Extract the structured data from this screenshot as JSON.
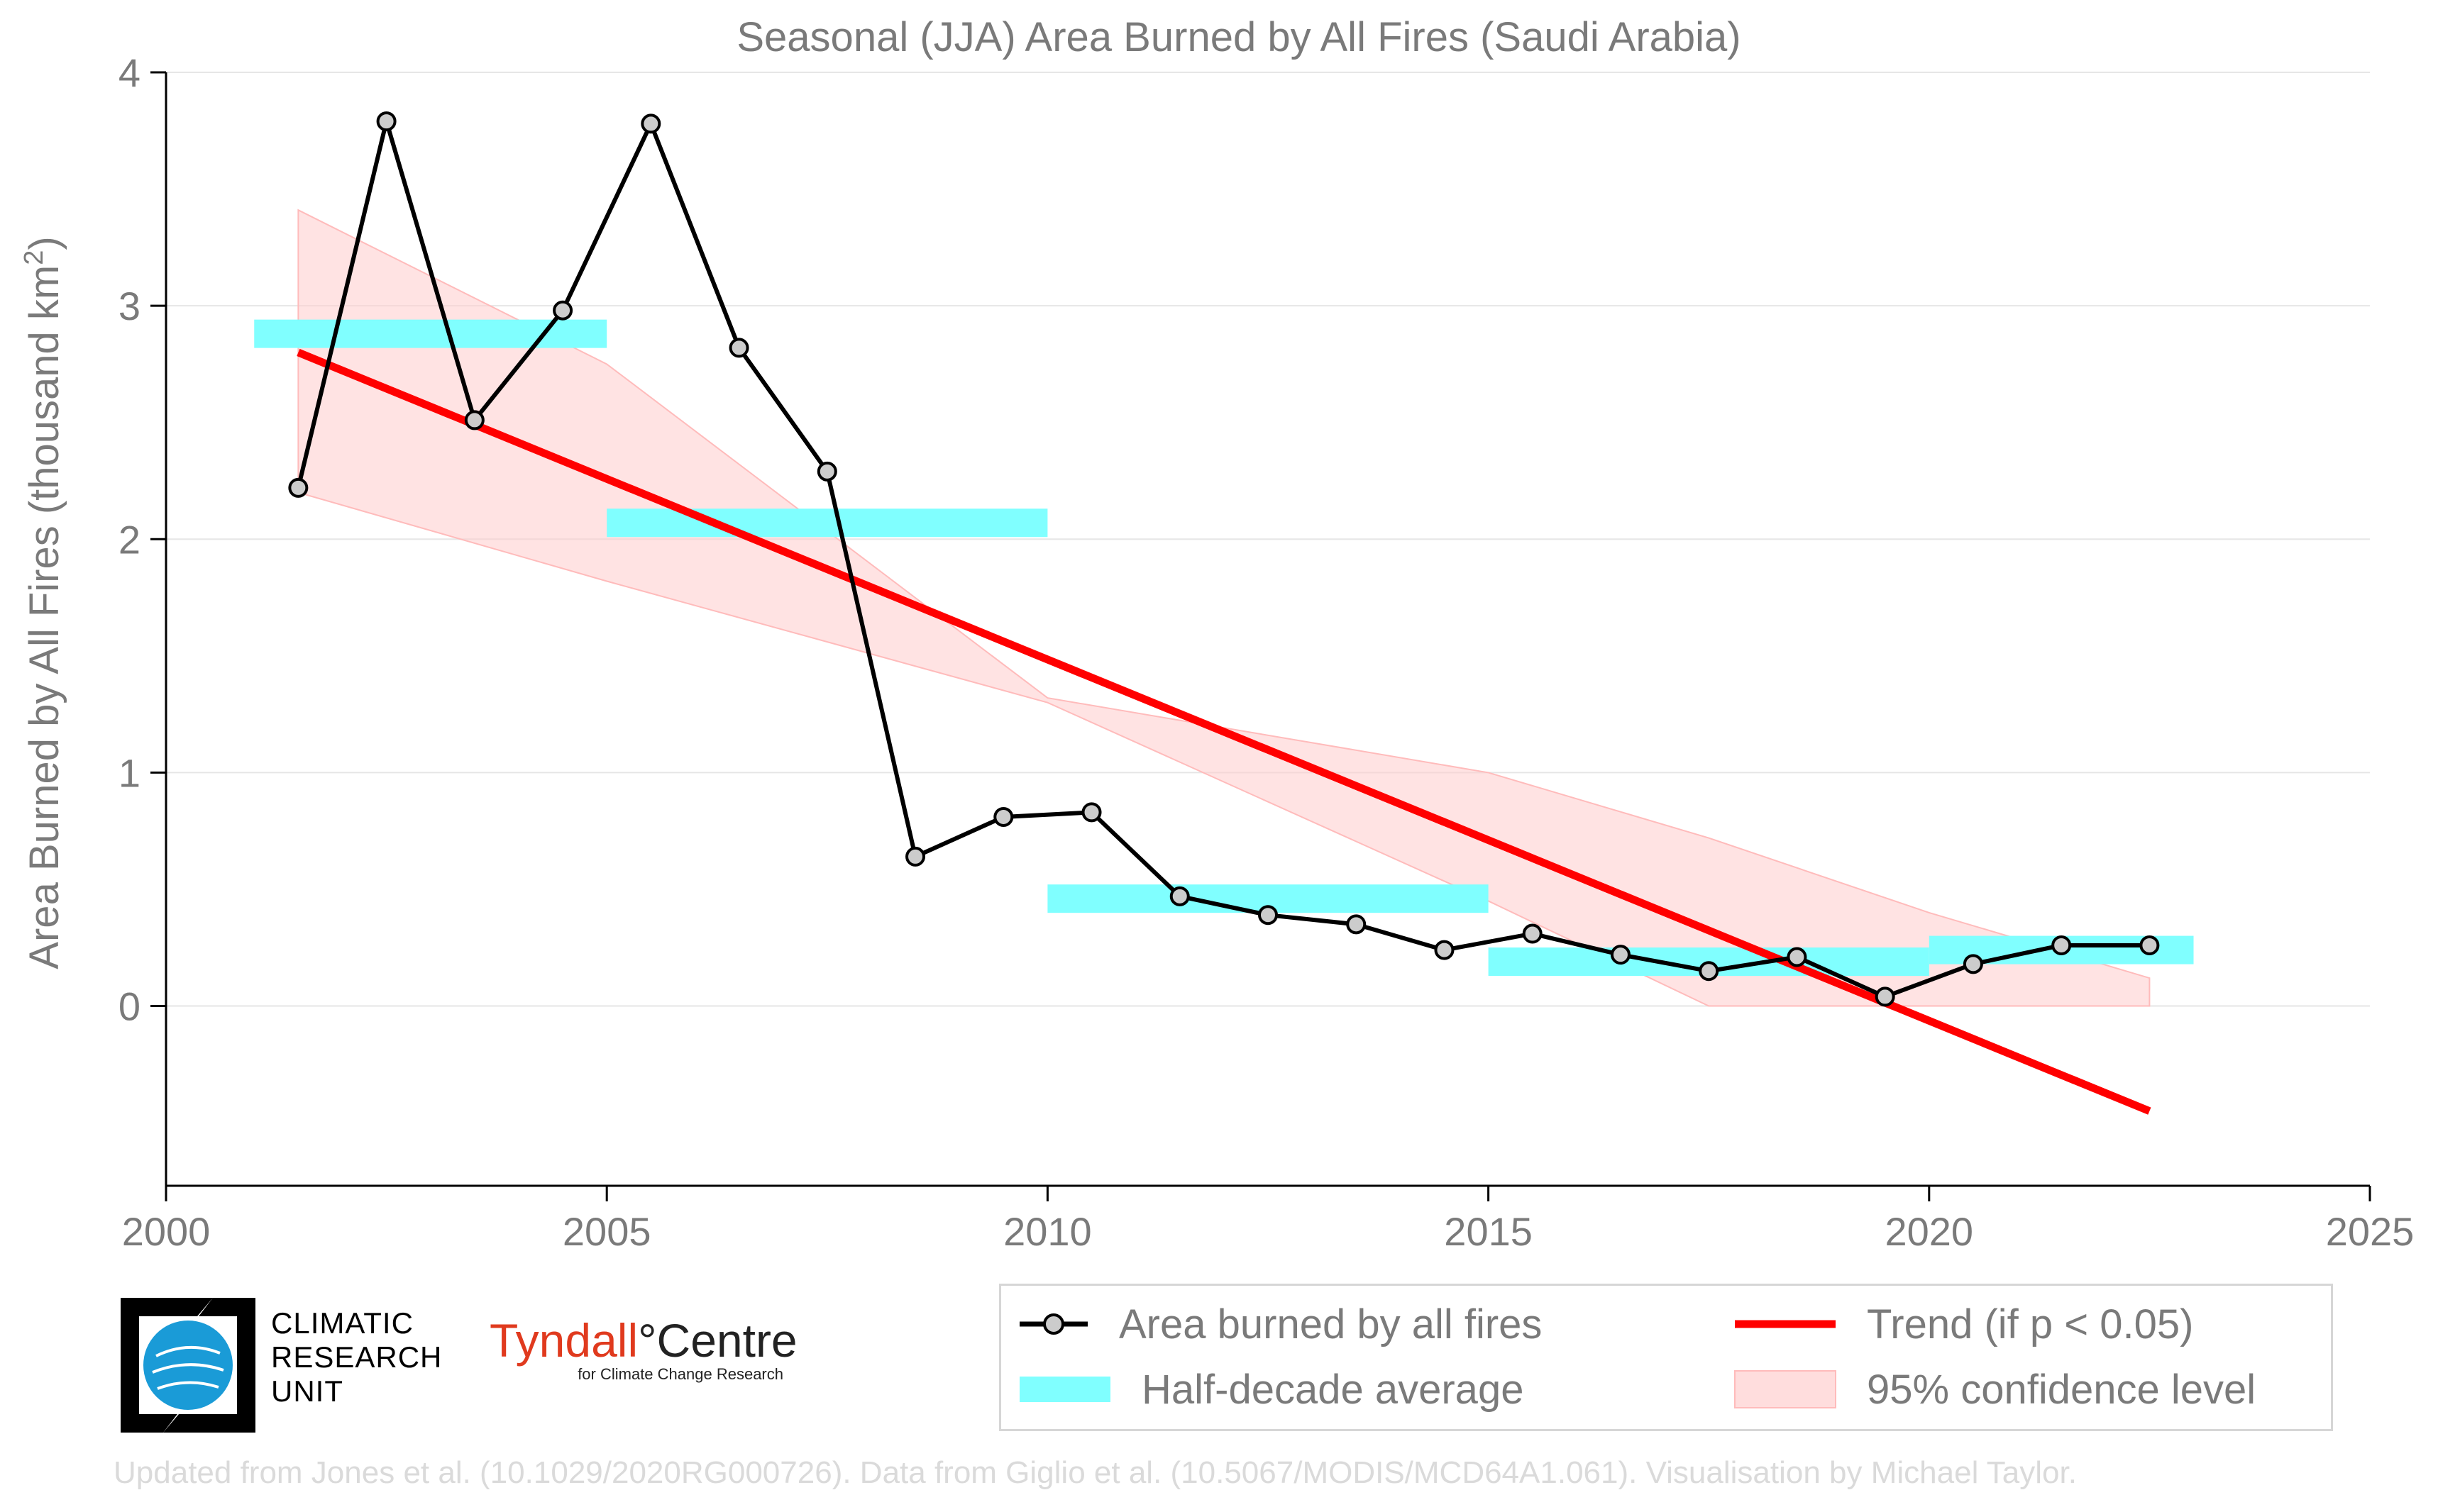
{
  "chart_data": {
    "type": "line",
    "title": "Seasonal (JJA) Area Burned by All Fires (Saudi Arabia)",
    "xlabel": "",
    "ylabel": "Area Burned by All Fires (thousand km",
    "ylabel_sup": "2",
    "ylabel_tail": ")",
    "xlim": [
      2000,
      2025
    ],
    "ylim": [
      -0.77,
      4
    ],
    "x_ticks": [
      2000,
      2005,
      2010,
      2015,
      2020,
      2025
    ],
    "x_tick_labels": [
      "2000",
      "2005",
      "2010",
      "2015",
      "2020",
      "2025"
    ],
    "y_ticks": [
      0,
      1,
      2,
      3,
      4
    ],
    "y_tick_labels": [
      "0",
      "1",
      "2",
      "3",
      "4"
    ],
    "grid": "horizontal",
    "legend_position": "bottom-right, below plot",
    "series": [
      {
        "name": "Area burned by all fires",
        "color": "#000000",
        "marker_fill": "#cccccc",
        "x": [
          2001.5,
          2002.5,
          2003.5,
          2004.5,
          2005.5,
          2006.5,
          2007.5,
          2008.5,
          2009.5,
          2010.5,
          2011.5,
          2012.5,
          2013.5,
          2014.5,
          2015.5,
          2016.5,
          2017.5,
          2018.5,
          2019.5,
          2020.5,
          2021.5,
          2022.5
        ],
        "y": [
          2.22,
          3.79,
          2.51,
          2.98,
          3.78,
          2.82,
          2.29,
          0.64,
          0.81,
          0.83,
          0.47,
          0.39,
          0.35,
          0.24,
          0.31,
          0.22,
          0.15,
          0.21,
          0.04,
          0.18,
          0.26,
          0.26
        ]
      },
      {
        "name": "Half-decade average",
        "color": "#80ffff",
        "segments": [
          {
            "x0": 2001.0,
            "x1": 2005.0,
            "y": 2.88
          },
          {
            "x0": 2005.0,
            "x1": 2010.0,
            "y": 2.07
          },
          {
            "x0": 2010.0,
            "x1": 2015.0,
            "y": 0.46
          },
          {
            "x0": 2015.0,
            "x1": 2020.0,
            "y": 0.19
          },
          {
            "x0": 2020.0,
            "x1": 2023.0,
            "y": 0.24
          }
        ]
      },
      {
        "name": "Trend (if p < 0.05)",
        "color": "#ff0000",
        "x": [
          2001.5,
          2022.5
        ],
        "y": [
          2.8,
          -0.45
        ]
      },
      {
        "name": "95% confidence level",
        "color": "#ffcccc",
        "x": [
          2001.5,
          2005.0,
          2010.0,
          2015.0,
          2017.5,
          2020.0,
          2022.5
        ],
        "upper": [
          3.41,
          2.75,
          1.32,
          1.0,
          0.72,
          0.4,
          0.12
        ],
        "lower": [
          2.2,
          1.82,
          1.3,
          0.45,
          0.0,
          0.0,
          0.0
        ]
      }
    ]
  },
  "legend": {
    "items": [
      {
        "label": "Area burned by all fires",
        "swatch": "line-marker"
      },
      {
        "label": "Trend (if p < 0.05)",
        "swatch": "red-line"
      },
      {
        "label": "Half-decade average",
        "swatch": "cyan-bar"
      },
      {
        "label": "95% confidence level",
        "swatch": "pink-band"
      }
    ]
  },
  "logos": {
    "cru_line1": "CLIMATIC",
    "cru_line2": "RESEARCH",
    "cru_line3": "UNIT",
    "tyndall_name": "Tyndall",
    "tyndall_degree": "°",
    "tyndall_centre": "Centre",
    "tyndall_sub": "for Climate Change Research"
  },
  "credit": "Updated from Jones et al. (10.1029/2020RG000726). Data from Giglio et al. (10.5067/MODIS/MCD64A1.061). Visualisation by Michael Taylor."
}
